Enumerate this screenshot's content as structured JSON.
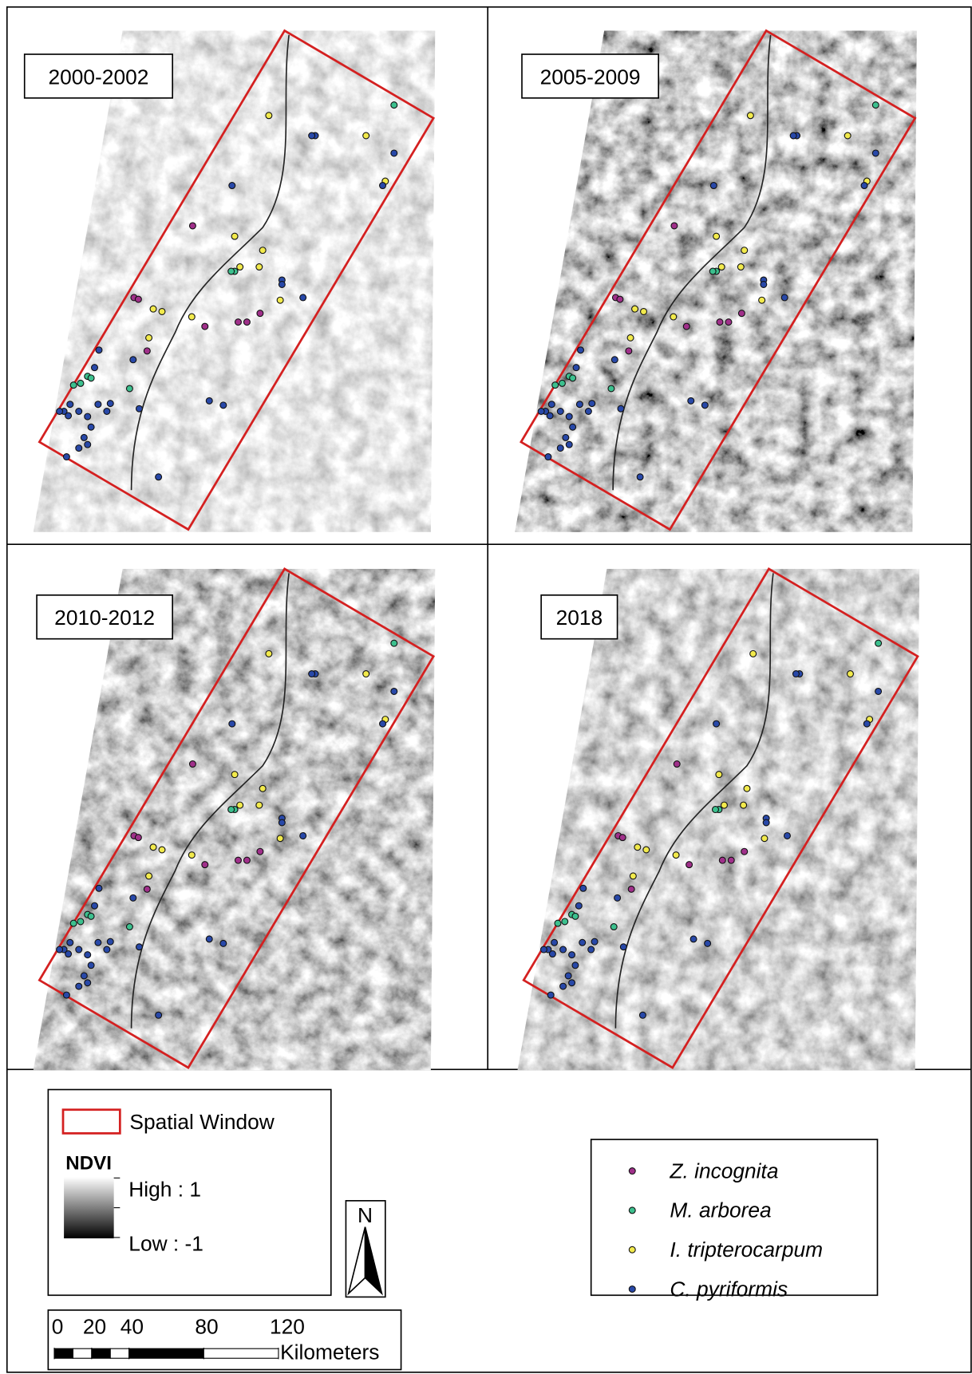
{
  "panels": [
    {
      "label": "2000-2002"
    },
    {
      "label": "2005-2009"
    },
    {
      "label": "2010-2012"
    },
    {
      "label": "2018"
    }
  ],
  "legend": {
    "spatial_window": "Spatial Window",
    "ndvi_title": "NDVI",
    "high": "High : 1",
    "low": "Low : -1"
  },
  "north": "N",
  "scale": {
    "ticks": [
      0,
      20,
      40,
      80,
      120
    ],
    "unit": "Kilometers"
  },
  "species": [
    {
      "name": "Z. incognita",
      "color": "#a0308a"
    },
    {
      "name": "M. arborea",
      "color": "#3cc08e"
    },
    {
      "name": "I. tripterocarpum",
      "color": "#f2ea4c"
    },
    {
      "name": "C. pyriformis",
      "color": "#2848a8"
    }
  ]
}
